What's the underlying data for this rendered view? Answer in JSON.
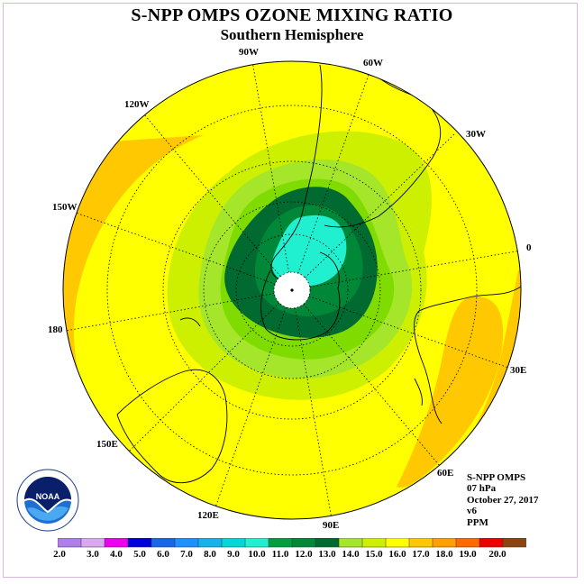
{
  "title": "S-NPP OMPS OZONE MIXING RATIO",
  "subtitle": "Southern Hemisphere",
  "longitude_labels": [
    "90W",
    "60W",
    "30W",
    "0",
    "30E",
    "60E",
    "90E",
    "120E",
    "150E",
    "180",
    "150W",
    "120W"
  ],
  "info": {
    "instrument": "S-NPP OMPS",
    "pressure": "07 hPa",
    "date": "October 27, 2017",
    "version": "v6",
    "units": "PPM"
  },
  "logo_text": "NOAA",
  "colorbar": {
    "ticks": [
      "2.0",
      "3.0",
      "4.0",
      "5.0",
      "6.0",
      "7.0",
      "8.0",
      "9.0",
      "10.0",
      "11.0",
      "12.0",
      "13.0",
      "14.0",
      "15.0",
      "16.0",
      "17.0",
      "18.0",
      "19.0",
      "20.0"
    ],
    "colors": [
      "#b07ee8",
      "#d9a8f0",
      "#ee00ee",
      "#0000dd",
      "#1a66e8",
      "#1e90ff",
      "#14b4e8",
      "#00d8d8",
      "#20f0d0",
      "#00a040",
      "#008838",
      "#006a30",
      "#a6e62a",
      "#ccf000",
      "#ffff00",
      "#ffc800",
      "#ffa000",
      "#ff6a00",
      "#ee0000",
      "#8b4513"
    ]
  },
  "colors": {
    "c15": "#ffff00",
    "c16": "#ffc800",
    "c14": "#ccf000",
    "c13": "#a6e62a",
    "c12": "#80dc00",
    "c11": "#006a30",
    "c10": "#20f0d0"
  }
}
